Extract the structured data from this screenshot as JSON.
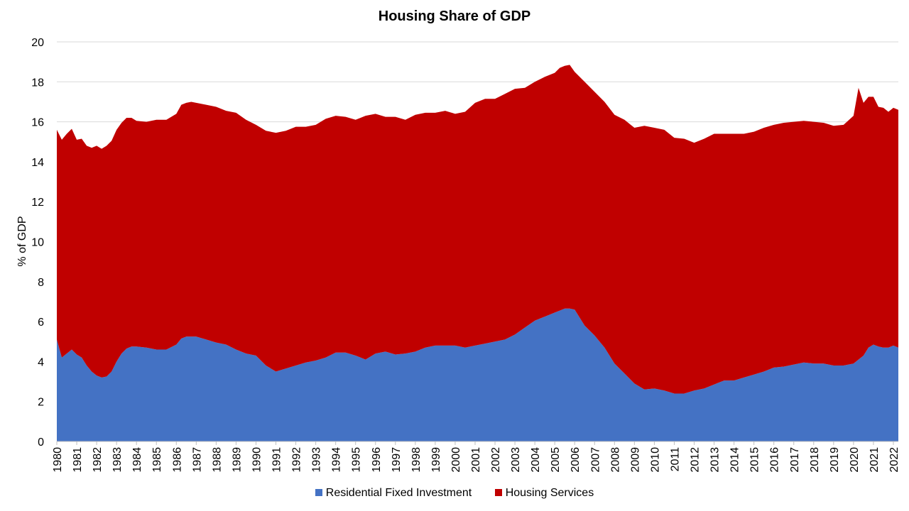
{
  "chart_data": {
    "type": "area",
    "stacked": true,
    "title": "Housing Share of GDP",
    "xlabel": "",
    "ylabel": "% of GDP",
    "ylim": [
      0,
      20
    ],
    "yticks": [
      0,
      2,
      4,
      6,
      8,
      10,
      12,
      14,
      16,
      18,
      20
    ],
    "xlim": [
      1980,
      2022.25
    ],
    "xticks": [
      "1980",
      "1981",
      "1982",
      "1983",
      "1984",
      "1985",
      "1986",
      "1987",
      "1988",
      "1989",
      "1990",
      "1991",
      "1992",
      "1993",
      "1994",
      "1995",
      "1996",
      "1997",
      "1998",
      "1999",
      "2000",
      "2001",
      "2002",
      "2003",
      "2004",
      "2005",
      "2006",
      "2007",
      "2008",
      "2009",
      "2010",
      "2011",
      "2012",
      "2013",
      "2014",
      "2015",
      "2016",
      "2017",
      "2018",
      "2019",
      "2020",
      "2021",
      "2022"
    ],
    "grid": "horizontal",
    "legend_position": "bottom",
    "x": [
      1980,
      1980.25,
      1980.5,
      1980.75,
      1981,
      1981.25,
      1981.5,
      1981.75,
      1982,
      1982.25,
      1982.5,
      1982.75,
      1983,
      1983.25,
      1983.5,
      1983.75,
      1984,
      1984.5,
      1985,
      1985.5,
      1986,
      1986.25,
      1986.5,
      1986.75,
      1987,
      1987.5,
      1988,
      1988.5,
      1989,
      1989.5,
      1990,
      1990.5,
      1991,
      1991.5,
      1992,
      1992.5,
      1993,
      1993.5,
      1994,
      1994.5,
      1995,
      1995.5,
      1996,
      1996.5,
      1997,
      1997.5,
      1998,
      1998.5,
      1999,
      1999.5,
      2000,
      2000.5,
      2001,
      2001.5,
      2002,
      2002.5,
      2003,
      2003.5,
      2004,
      2004.5,
      2005,
      2005.25,
      2005.5,
      2005.75,
      2006,
      2006.5,
      2007,
      2007.5,
      2008,
      2008.5,
      2009,
      2009.5,
      2010,
      2010.5,
      2011,
      2011.5,
      2012,
      2012.5,
      2013,
      2013.5,
      2014,
      2014.5,
      2015,
      2015.5,
      2016,
      2016.5,
      2017,
      2017.5,
      2018,
      2018.5,
      2019,
      2019.5,
      2020,
      2020.25,
      2020.5,
      2020.75,
      2021,
      2021.25,
      2021.5,
      2021.75,
      2022,
      2022.25
    ],
    "series": [
      {
        "name": "Residential Fixed Investment",
        "color": "#4472C4",
        "values": [
          5.1,
          4.2,
          4.4,
          4.6,
          4.35,
          4.2,
          3.8,
          3.5,
          3.3,
          3.2,
          3.25,
          3.5,
          4.0,
          4.4,
          4.65,
          4.75,
          4.75,
          4.7,
          4.6,
          4.6,
          4.85,
          5.15,
          5.25,
          5.25,
          5.25,
          5.1,
          4.95,
          4.85,
          4.6,
          4.4,
          4.3,
          3.8,
          3.5,
          3.65,
          3.8,
          3.95,
          4.05,
          4.2,
          4.45,
          4.45,
          4.3,
          4.1,
          4.4,
          4.5,
          4.35,
          4.4,
          4.5,
          4.7,
          4.8,
          4.8,
          4.8,
          4.7,
          4.8,
          4.9,
          5.0,
          5.1,
          5.35,
          5.7,
          6.05,
          6.25,
          6.45,
          6.55,
          6.65,
          6.65,
          6.6,
          5.8,
          5.3,
          4.7,
          3.9,
          3.4,
          2.9,
          2.6,
          2.65,
          2.55,
          2.4,
          2.4,
          2.55,
          2.65,
          2.85,
          3.05,
          3.05,
          3.2,
          3.35,
          3.5,
          3.7,
          3.75,
          3.85,
          3.95,
          3.9,
          3.9,
          3.8,
          3.8,
          3.9,
          4.1,
          4.3,
          4.7,
          4.85,
          4.75,
          4.7,
          4.7,
          4.8,
          4.7
        ]
      },
      {
        "name": "Housing Services",
        "color": "#C00000",
        "values": [
          10.5,
          10.9,
          11.0,
          11.05,
          10.75,
          10.95,
          11.0,
          11.2,
          11.5,
          11.45,
          11.55,
          11.55,
          11.6,
          11.55,
          11.55,
          11.45,
          11.3,
          11.3,
          11.5,
          11.5,
          11.55,
          11.7,
          11.7,
          11.75,
          11.7,
          11.75,
          11.8,
          11.7,
          11.85,
          11.7,
          11.55,
          11.75,
          11.95,
          11.9,
          11.95,
          11.8,
          11.8,
          11.95,
          11.85,
          11.8,
          11.8,
          12.2,
          12.0,
          11.75,
          11.9,
          11.7,
          11.85,
          11.75,
          11.65,
          11.75,
          11.6,
          11.8,
          12.15,
          12.25,
          12.15,
          12.3,
          12.3,
          12.0,
          11.95,
          12.0,
          12.0,
          12.15,
          12.15,
          12.2,
          11.9,
          12.2,
          12.2,
          12.3,
          12.45,
          12.7,
          12.8,
          13.2,
          13.05,
          13.05,
          12.8,
          12.75,
          12.4,
          12.5,
          12.55,
          12.35,
          12.35,
          12.2,
          12.15,
          12.2,
          12.15,
          12.2,
          12.15,
          12.1,
          12.1,
          12.05,
          12.0,
          12.05,
          12.4,
          13.6,
          12.65,
          12.55,
          12.4,
          12.0,
          12.0,
          11.8,
          11.9,
          11.9
        ]
      }
    ]
  }
}
